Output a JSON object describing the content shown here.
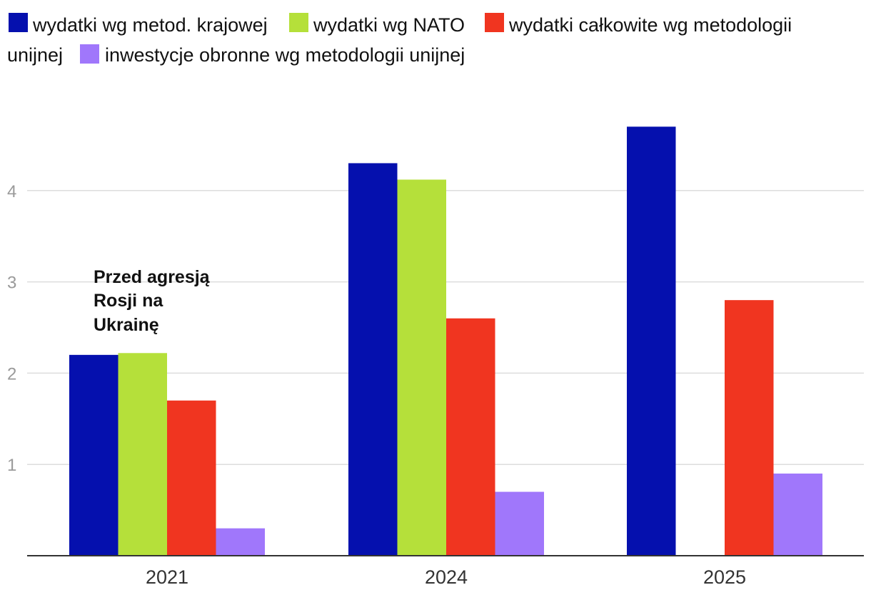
{
  "chart_data": {
    "type": "bar",
    "categories": [
      "2021",
      "2024",
      "2025"
    ],
    "series": [
      {
        "name": "wydatki wg metod. krajowej",
        "color": "#0510ae",
        "values": [
          2.2,
          4.3,
          4.7
        ]
      },
      {
        "name": "wydatki wg NATO",
        "color": "#b5e03a",
        "values": [
          2.22,
          4.12,
          null
        ]
      },
      {
        "name": "wydatki całkowite wg metodologii unijnej",
        "color": "#f03520",
        "values": [
          1.7,
          2.6,
          2.8
        ]
      },
      {
        "name": "inwestycje obronne wg metodologii unijnej",
        "color": "#a077fb",
        "values": [
          0.3,
          0.7,
          0.9
        ]
      }
    ],
    "yticks": [
      1,
      2,
      3,
      4
    ],
    "ylim": [
      0,
      5
    ],
    "grid": true,
    "legend_position": "top",
    "annotation": {
      "lines": [
        "Przed agresją",
        "Rosji na",
        "Ukrainę"
      ],
      "category": "2021"
    },
    "title": "",
    "xlabel": "",
    "ylabel": ""
  }
}
